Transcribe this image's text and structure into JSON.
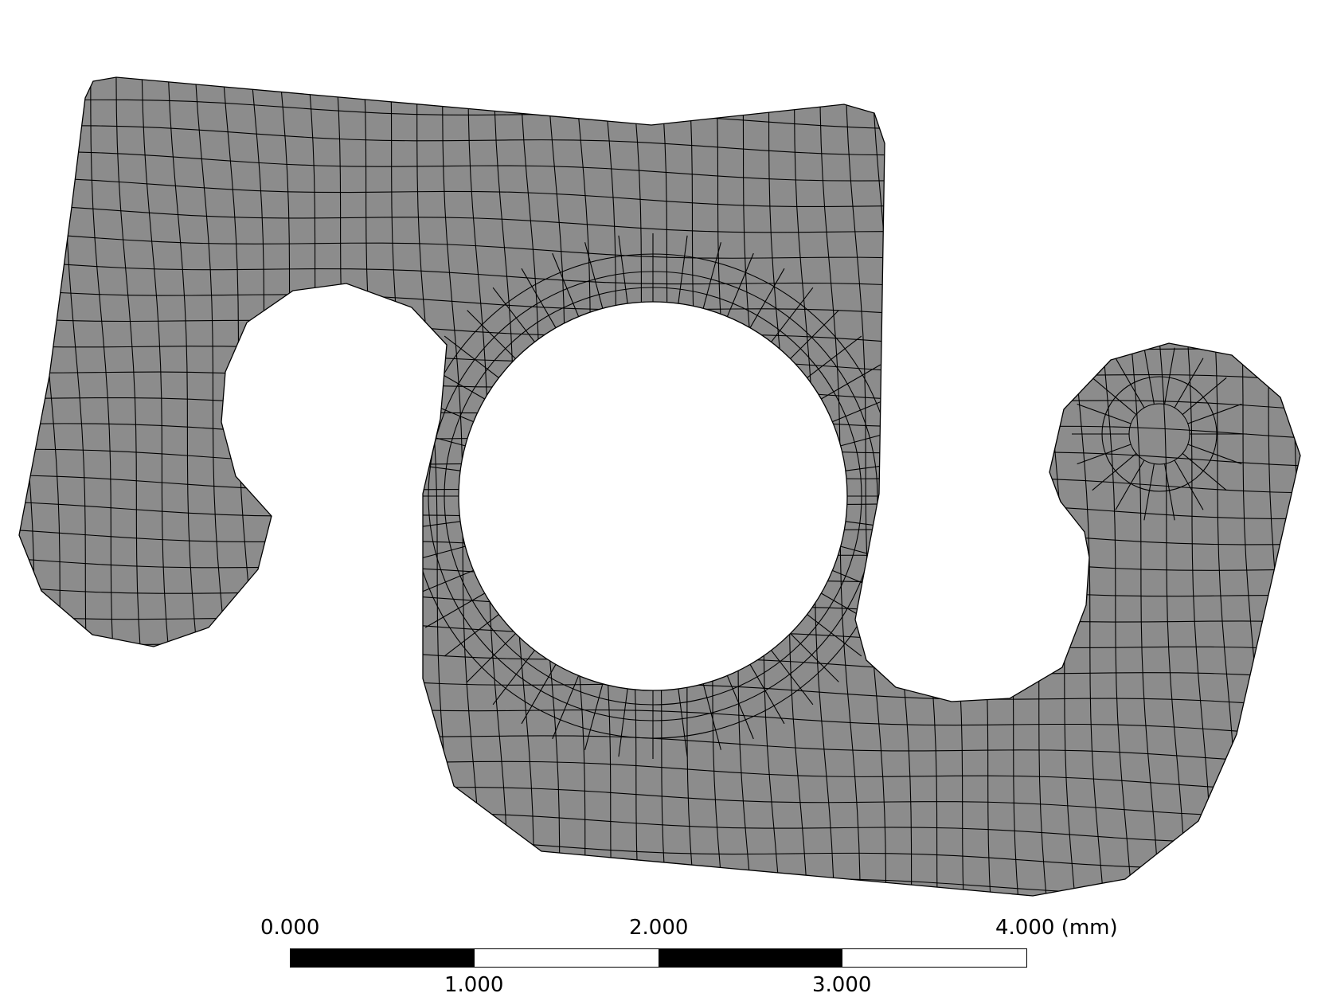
{
  "colors": {
    "mesh_fill": "#8c8c8c",
    "mesh_lines": "#000000",
    "scale_dark": "#000000",
    "scale_light": "#ffffff",
    "background": "#ffffff"
  },
  "scale_bar": {
    "top_labels": [
      "0.000",
      "2.000",
      "4.000 (mm)"
    ],
    "bottom_labels": [
      "1.000",
      "3.000"
    ],
    "segment_colors": [
      "dark",
      "light",
      "dark",
      "light"
    ]
  }
}
